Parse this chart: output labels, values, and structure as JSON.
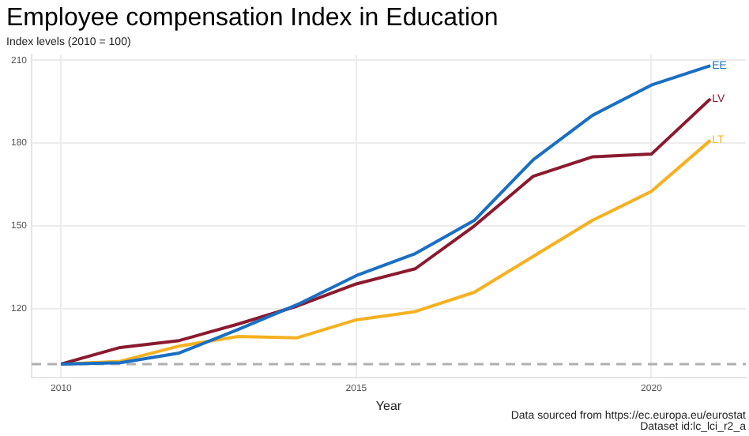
{
  "chart_data": {
    "type": "line",
    "title": "Employee compensation Index in Education",
    "subtitle": "Index levels (2010 = 100)",
    "xlabel": "Year",
    "x": [
      2010,
      2011,
      2012,
      2013,
      2014,
      2015,
      2016,
      2017,
      2018,
      2019,
      2020,
      2021
    ],
    "series": [
      {
        "name": "EE",
        "color": "#1a6fc4",
        "values": [
          100,
          100.5,
          104,
          112.5,
          121.5,
          132,
          140,
          152,
          174,
          190,
          201,
          208
        ]
      },
      {
        "name": "LV",
        "color": "#8b1a2e",
        "values": [
          100,
          106,
          108.5,
          114.5,
          121,
          129,
          134.5,
          150,
          168,
          175,
          176,
          196
        ]
      },
      {
        "name": "LT",
        "color": "#f5b120",
        "values": [
          100,
          101,
          106.5,
          110,
          109.5,
          116,
          119,
          126,
          139,
          152,
          162.5,
          181
        ]
      }
    ],
    "xlim": [
      2009.5,
      2021.6
    ],
    "xticks": [
      2010,
      2015,
      2020
    ],
    "ylim": [
      95,
      212
    ],
    "yticks": [
      120,
      150,
      180,
      210
    ],
    "grid": true,
    "legend": false,
    "marker": "none",
    "line_style": "solid",
    "ref_lines": [
      {
        "axis": "y",
        "value": 100,
        "color": "#b0b0b0",
        "line_style": "dashed"
      }
    ],
    "annotations": [
      "Data sourced from https://ec.europa.eu/eurostat",
      "Dataset id:lc_lci_r2_a"
    ]
  }
}
